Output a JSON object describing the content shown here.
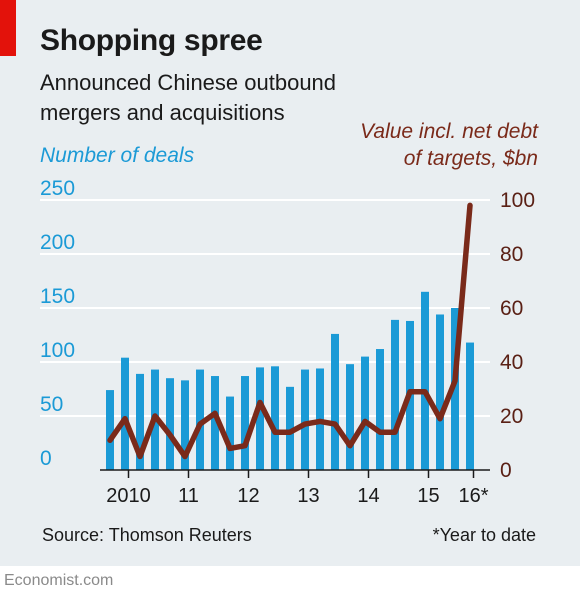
{
  "header": {
    "title": "Shopping spree",
    "subtitle": "Announced Chinese outbound mergers and acquisitions"
  },
  "footer": {
    "source": "Source: Thomson Reuters",
    "footnote": "*Year to date",
    "brand": "Economist.com"
  },
  "colors": {
    "bars": "#1b9ad6",
    "line": "#7a2a1a",
    "background": "#e9eef1",
    "accent": "#e3120b"
  },
  "chart_data": {
    "type": "bar",
    "left_axis": {
      "label": "Number of deals",
      "ylim": [
        0,
        250
      ],
      "ticks": [
        0,
        50,
        100,
        150,
        200,
        250
      ]
    },
    "right_axis": {
      "label_lines": [
        "Value incl. net debt",
        "of targets, $bn"
      ],
      "ylim": [
        0,
        100
      ],
      "ticks": [
        0,
        20,
        40,
        60,
        80,
        100
      ]
    },
    "x_tick_labels": [
      "2010",
      "11",
      "12",
      "13",
      "14",
      "15",
      "16*"
    ],
    "x_tick_positions": [
      1.5,
      5.5,
      9.5,
      13.5,
      17.5,
      21.5,
      24.5
    ],
    "grid": true,
    "series": [
      {
        "name": "Number of deals",
        "type": "bar",
        "axis": "left",
        "values": [
          74,
          104,
          89,
          93,
          85,
          83,
          93,
          87,
          68,
          87,
          95,
          96,
          77,
          93,
          94,
          126,
          98,
          105,
          112,
          139,
          138,
          165,
          144,
          150,
          118
        ]
      },
      {
        "name": "Value incl. net debt of targets, $bn",
        "type": "line",
        "axis": "right",
        "values": [
          11,
          19,
          5,
          20,
          13,
          5,
          17,
          21,
          8,
          9,
          25,
          14,
          14,
          17,
          18,
          17,
          9,
          18,
          14,
          14,
          29,
          29,
          19,
          33,
          98
        ]
      }
    ]
  }
}
